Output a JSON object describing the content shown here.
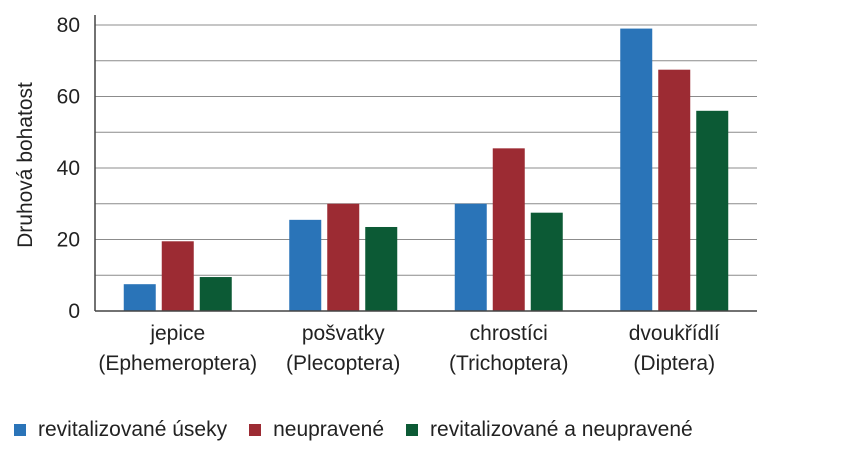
{
  "chart_data": {
    "type": "bar",
    "title": "",
    "xlabel": "",
    "ylabel": "Druhová bohatost",
    "ylim": [
      0,
      85
    ],
    "yticks": [
      0,
      20,
      40,
      60,
      80
    ],
    "grid": true,
    "legend_position": "bottom",
    "categories": [
      {
        "line1": "jepice",
        "line2": "(Ephemeroptera)"
      },
      {
        "line1": "pošvatky",
        "line2": "(Plecoptera)"
      },
      {
        "line1": "chrostíci",
        "line2": "(Trichoptera)"
      },
      {
        "line1": "dvoukřídlí",
        "line2": "(Diptera)"
      }
    ],
    "series": [
      {
        "name": "revitalizované úseky",
        "color": "#2a74b8",
        "values": [
          7.5,
          25.5,
          30,
          79
        ]
      },
      {
        "name": "neupravené",
        "color": "#9c2b33",
        "values": [
          19.5,
          30,
          45.5,
          67.5
        ]
      },
      {
        "name": "revitalizované a neupravené",
        "color": "#0c5a35",
        "values": [
          9.5,
          23.5,
          27.5,
          56
        ]
      }
    ]
  }
}
